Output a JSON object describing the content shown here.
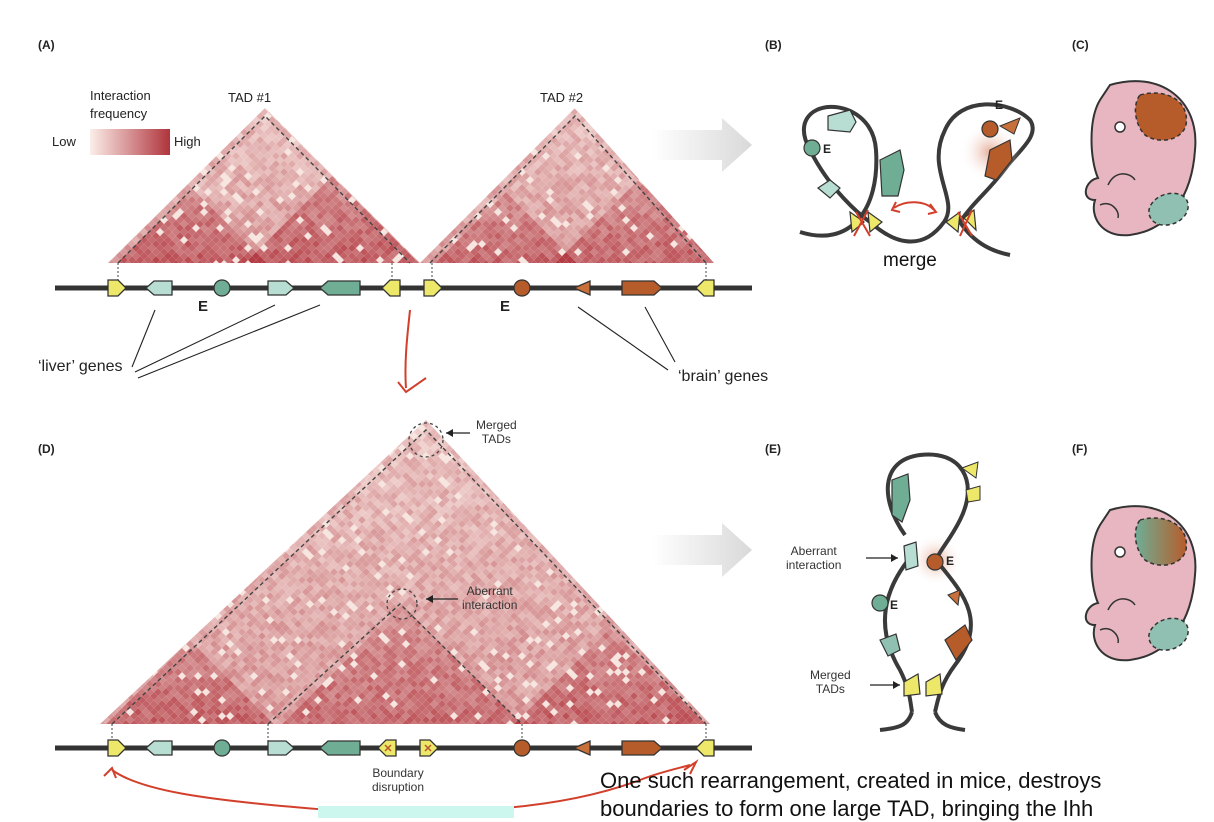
{
  "panels": {
    "A": "(A)",
    "B": "(B)",
    "C": "(C)",
    "D": "(D)",
    "E": "(E)",
    "F": "(F)"
  },
  "legend": {
    "title_line1": "Interaction",
    "title_line2": "frequency",
    "low": "Low",
    "high": "High",
    "colors": {
      "low": "#fbeee9",
      "high": "#b0343c"
    }
  },
  "panel_a": {
    "tad1": "TAD #1",
    "tad2": "TAD #2",
    "enhancer1": "E",
    "enhancer2": "E",
    "liver_genes": "‘liver’ genes",
    "brain_genes": "‘brain’ genes"
  },
  "panel_b": {
    "enhancer_top": "E",
    "enhancer_left": "E",
    "merge": "merge"
  },
  "panel_d": {
    "merged_tads": "Merged\nTADs",
    "aberrant": "Aberrant\ninteraction",
    "boundary": "Boundary\ndisruption"
  },
  "panel_e": {
    "aberrant": "Aberrant\ninteraction",
    "merged_tads": "Merged\nTADs",
    "enhancer_right": "E",
    "enhancer_left": "E"
  },
  "caption": {
    "line1": "One such rearrangement, created in mice, destroys",
    "line2": "boundaries to form one large TAD, bringing the Ihh"
  },
  "colors": {
    "liver_gene": "#8fc0b2",
    "liver_gene_dark": "#5f9e8c",
    "brain_gene": "#b6592a",
    "boundary_yellow": "#ede76a",
    "embryo": "#e7b6c0",
    "annotation_red": "#d2402c"
  }
}
